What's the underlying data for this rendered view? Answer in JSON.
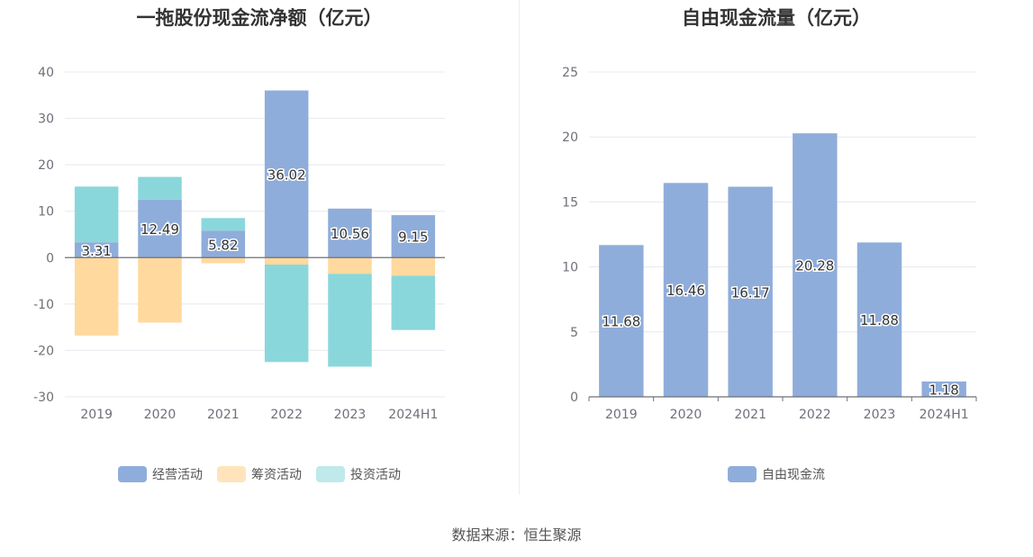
{
  "colors": {
    "operating": "#8fadda",
    "financing": "#ffd99e",
    "investing": "#8ad7db",
    "free_cash_flow": "#8fadda",
    "grid": "#e5e8ef",
    "axis": "#6e7079"
  },
  "source_text": "数据来源：恒生聚源",
  "chart_data": [
    {
      "type": "bar",
      "stacked": true,
      "title": "一拖股份现金流净额（亿元）",
      "categories": [
        "2019",
        "2020",
        "2021",
        "2022",
        "2023",
        "2024H1"
      ],
      "ylim": [
        -30,
        40
      ],
      "yticks": [
        40,
        30,
        20,
        10,
        0,
        -10,
        -20,
        -30
      ],
      "grid": true,
      "legend_position": "bottom",
      "series": [
        {
          "name": "经营活动",
          "values": [
            3.31,
            12.49,
            5.82,
            36.02,
            10.56,
            9.15
          ],
          "data_labels": [
            "3.31",
            "12.49",
            "5.82",
            "36.02",
            "10.56",
            "9.15"
          ]
        },
        {
          "name": "筹资活动",
          "values": [
            -16.8,
            -14.0,
            -1.2,
            -1.5,
            -3.5,
            -3.9
          ]
        },
        {
          "name": "投资活动",
          "values": [
            12.0,
            4.9,
            2.7,
            -21.0,
            -20.0,
            -11.7
          ]
        }
      ]
    },
    {
      "type": "bar",
      "title": "自由现金流量（亿元）",
      "categories": [
        "2019",
        "2020",
        "2021",
        "2022",
        "2023",
        "2024H1"
      ],
      "ylim": [
        0,
        25
      ],
      "yticks": [
        25,
        20,
        15,
        10,
        5,
        0
      ],
      "grid": true,
      "legend_position": "bottom",
      "series": [
        {
          "name": "自由现金流",
          "values": [
            11.68,
            16.46,
            16.17,
            20.28,
            11.88,
            1.18
          ],
          "data_labels": [
            "11.68",
            "16.46",
            "16.17",
            "20.28",
            "11.88",
            "1.18"
          ]
        }
      ]
    }
  ]
}
